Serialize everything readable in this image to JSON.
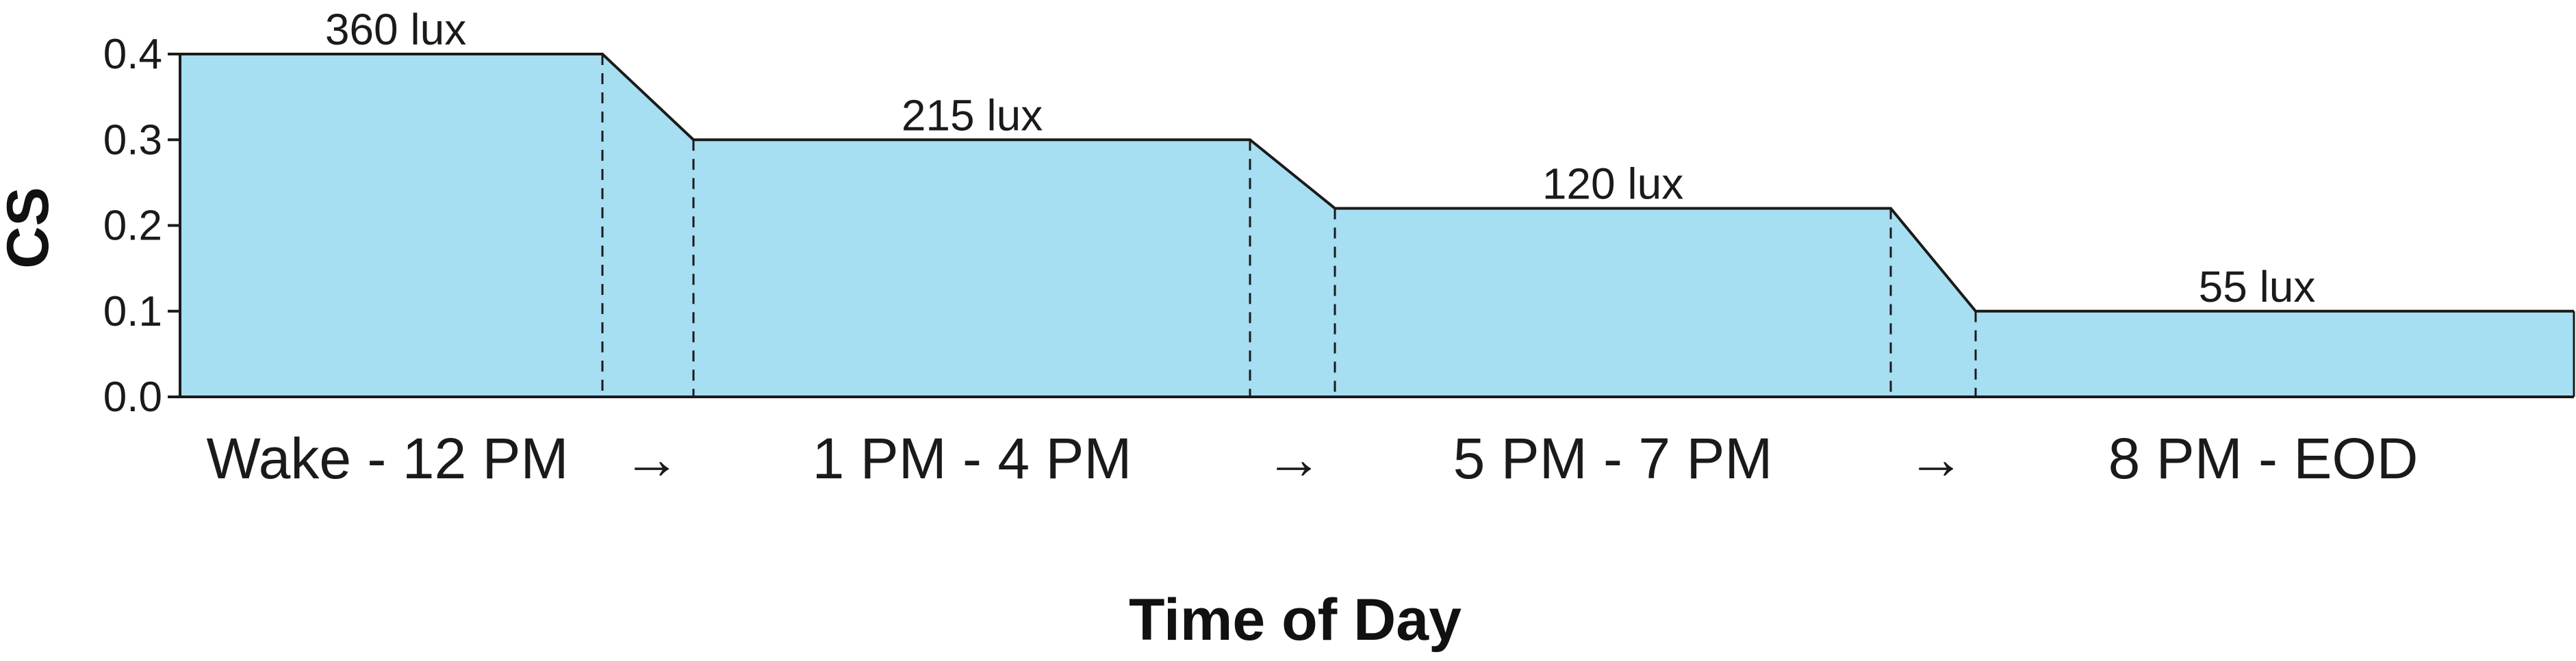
{
  "chart_data": {
    "type": "area",
    "title": "",
    "xlabel": "Time of Day",
    "ylabel": "CS",
    "ylim": [
      0,
      0.4
    ],
    "yticks": [
      "0.0",
      "0.1",
      "0.2",
      "0.3",
      "0.4"
    ],
    "grid": false,
    "fill_color": "#a6def2",
    "line_color": "#1a1a1a",
    "periods": [
      {
        "label": "Wake - 12 PM",
        "cs": 0.4,
        "lux_label": "360 lux"
      },
      {
        "label": "1 PM - 4 PM",
        "cs": 0.3,
        "lux_label": "215 lux"
      },
      {
        "label": "5 PM - 7 PM",
        "cs": 0.22,
        "lux_label": "120 lux"
      },
      {
        "label": "8 PM - EOD",
        "cs": 0.1,
        "lux_label": "55 lux"
      }
    ],
    "transition_label": "→"
  }
}
